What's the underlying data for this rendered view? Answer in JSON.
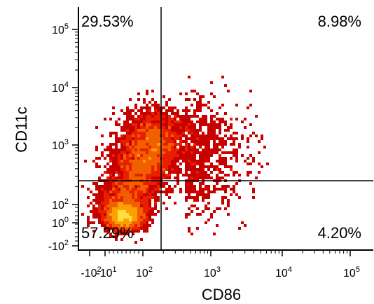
{
  "chart_data": {
    "type": "heatmap",
    "subtype": "flow-cytometry-density-dot-plot",
    "xlabel": "CD86",
    "ylabel": "CD11c",
    "x_scale": "biexponential",
    "y_scale": "biexponential",
    "x_ticks": [
      {
        "base": "-10",
        "exp": "2"
      },
      {
        "base": "-10",
        "exp": "1"
      },
      {
        "base": "10",
        "exp": "2"
      },
      {
        "base": "10",
        "exp": "3"
      },
      {
        "base": "10",
        "exp": "4"
      },
      {
        "base": "10",
        "exp": "5"
      }
    ],
    "y_ticks": [
      {
        "base": "10",
        "exp": "5"
      },
      {
        "base": "10",
        "exp": "4"
      },
      {
        "base": "10",
        "exp": "3"
      },
      {
        "base": "10",
        "exp": "2"
      },
      {
        "base": "10",
        "exp": "0"
      },
      {
        "base": "-10",
        "exp": "2"
      }
    ],
    "gate": {
      "x_threshold": 180,
      "y_threshold": 260
    },
    "quadrants": {
      "upper_left": "29.53%",
      "upper_right": "8.98%",
      "lower_left": "57.29%",
      "lower_right": "4.20%"
    },
    "quadrant_values": {
      "upper_left": 29.53,
      "upper_right": 8.98,
      "lower_left": 57.29,
      "lower_right": 4.2
    },
    "density_colors": [
      "#c80000",
      "#e82000",
      "#f06000",
      "#ffa000",
      "#ffe040",
      "#40c040",
      "#00a0ff"
    ],
    "grid": false,
    "legend": "none"
  }
}
